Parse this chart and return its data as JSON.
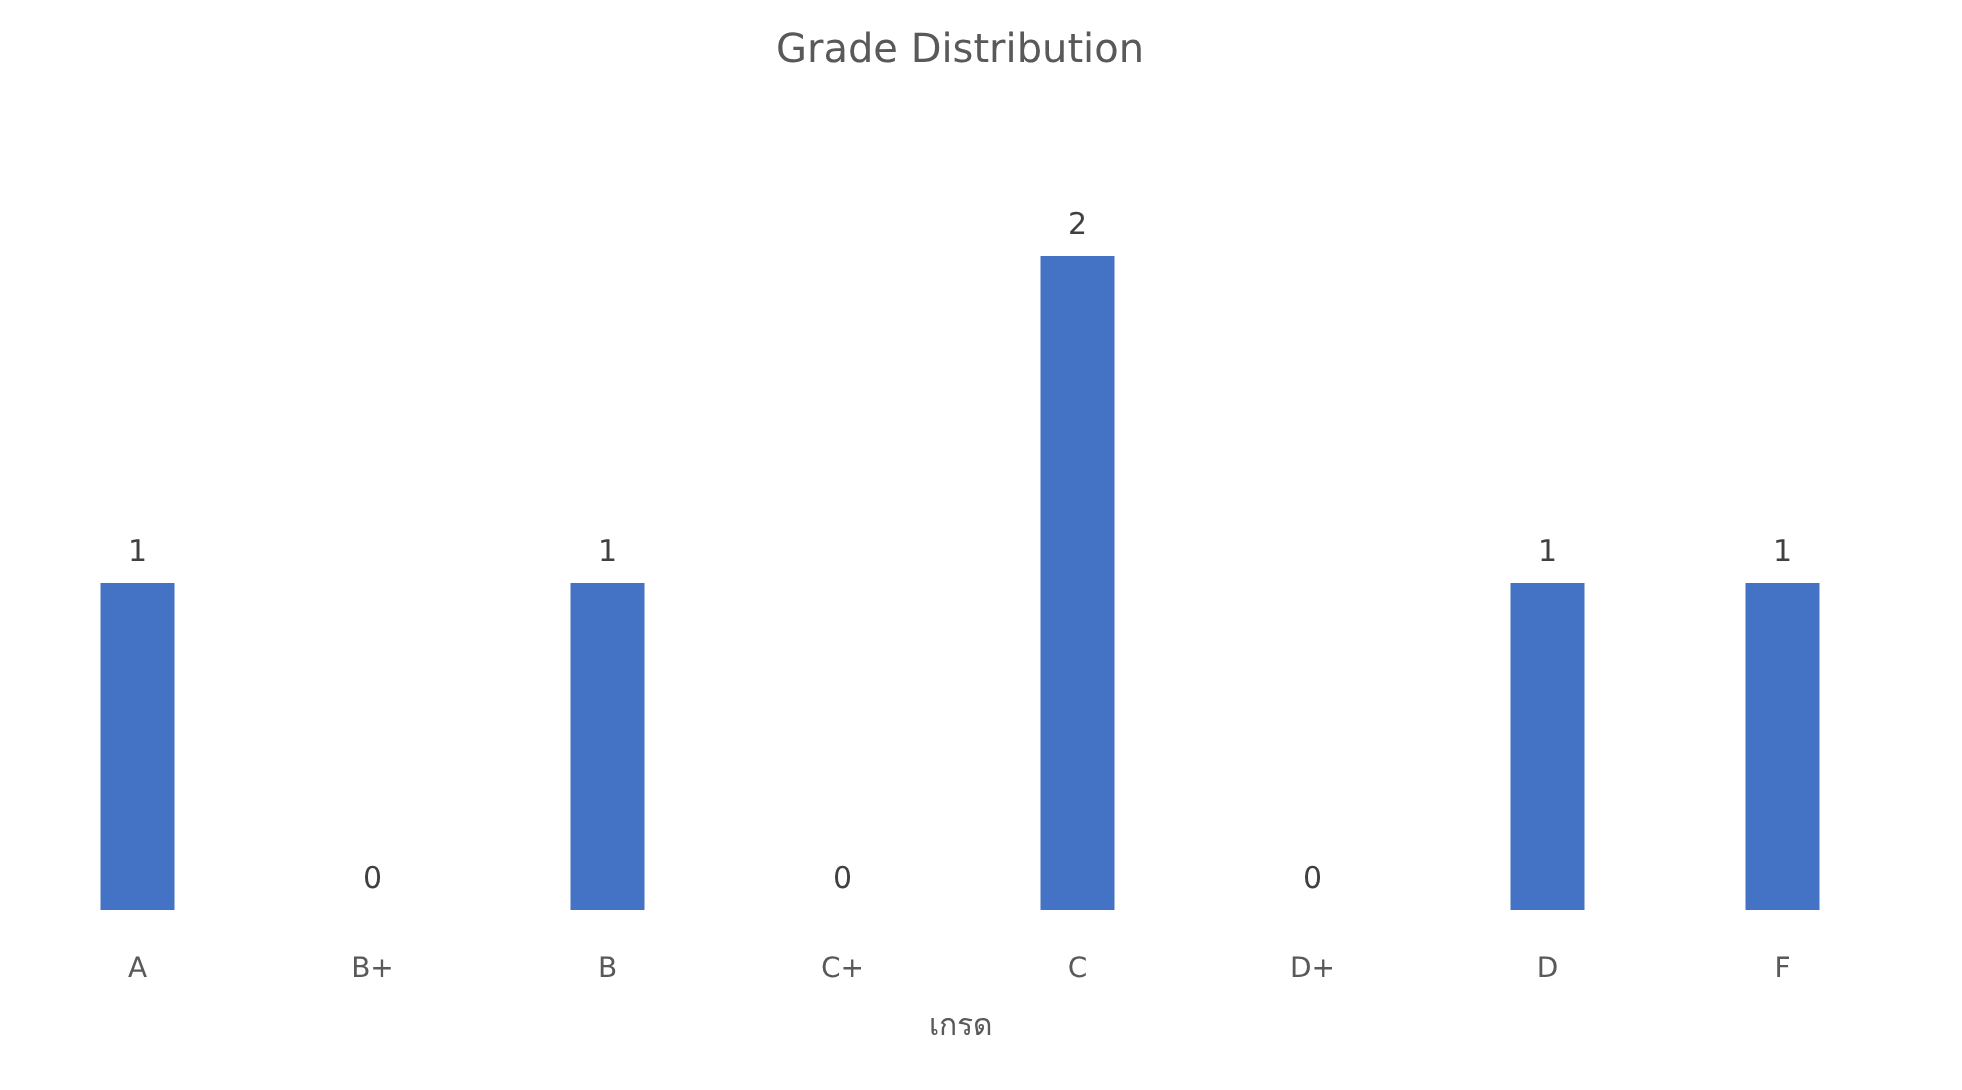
{
  "chart_data": {
    "type": "bar",
    "title": "Grade Distribution",
    "xlabel": "เกรด",
    "categories": [
      "A",
      "B+",
      "B",
      "C+",
      "C",
      "D+",
      "D",
      "F"
    ],
    "values": [
      1,
      0,
      1,
      0,
      2,
      0,
      1,
      1
    ],
    "color": "#4472c4",
    "data_labels": true,
    "grid": false
  }
}
